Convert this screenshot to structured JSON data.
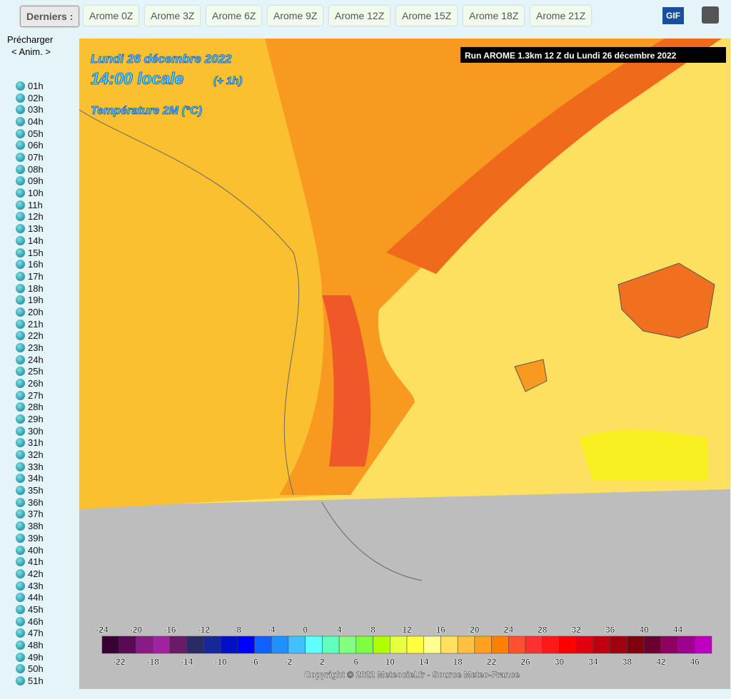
{
  "toolbar": {
    "label": "Derniers :",
    "runs": [
      "Arome 0Z",
      "Arome 3Z",
      "Arome 6Z",
      "Arome 9Z",
      "Arome 12Z",
      "Arome 15Z",
      "Arome 18Z",
      "Arome 21Z"
    ],
    "gif": "GIF"
  },
  "sidebar": {
    "preload": "Précharger",
    "anim": "< Anim. >",
    "hours": [
      "01h",
      "02h",
      "03h",
      "04h",
      "05h",
      "06h",
      "07h",
      "08h",
      "09h",
      "10h",
      "11h",
      "12h",
      "13h",
      "14h",
      "15h",
      "16h",
      "17h",
      "18h",
      "19h",
      "20h",
      "21h",
      "22h",
      "23h",
      "24h",
      "25h",
      "26h",
      "27h",
      "28h",
      "29h",
      "30h",
      "31h",
      "32h",
      "33h",
      "34h",
      "35h",
      "36h",
      "37h",
      "38h",
      "39h",
      "40h",
      "41h",
      "42h",
      "43h",
      "44h",
      "45h",
      "46h",
      "47h",
      "48h",
      "49h",
      "50h",
      "51h"
    ]
  },
  "map": {
    "date": "Lundi 26 décembre 2022",
    "time": "14:00 locale",
    "offset": "(+ 1h)",
    "parameter": "Température 2M (°C)",
    "run": "Run AROME 1.3km 12 Z du Lundi 26 décembre 2022",
    "copyright": "Copyright © 2022 Meteociel.fr - Source Meteo-France",
    "legend": {
      "top_labels": [
        -24,
        -20,
        -16,
        -12,
        -8,
        -4,
        0,
        4,
        8,
        12,
        16,
        20,
        24,
        28,
        32,
        36,
        40,
        44
      ],
      "bottom_labels": [
        -22,
        -18,
        -14,
        -10,
        -6,
        -2,
        2,
        6,
        10,
        14,
        18,
        22,
        26,
        30,
        34,
        38,
        42,
        46
      ],
      "colors": [
        "#3a0034",
        "#5a0a55",
        "#8a1a85",
        "#a022a0",
        "#6a1a66",
        "#2a2a66",
        "#14289a",
        "#0010c8",
        "#0000ff",
        "#1060ff",
        "#2090ff",
        "#40c0ff",
        "#60ffff",
        "#60ffc0",
        "#80ff80",
        "#80ff40",
        "#b0ff00",
        "#e8ff40",
        "#ffff40",
        "#ffff90",
        "#ffe060",
        "#ffc040",
        "#ffa020",
        "#ff8000",
        "#ff5030",
        "#ff3030",
        "#ff1818",
        "#ff0000",
        "#e00010",
        "#c00010",
        "#a00010",
        "#800010",
        "#6a0030",
        "#900060",
        "#a00090",
        "#c000c0",
        "#e000e0",
        "#ff40ff",
        "#ff80ff"
      ]
    }
  }
}
